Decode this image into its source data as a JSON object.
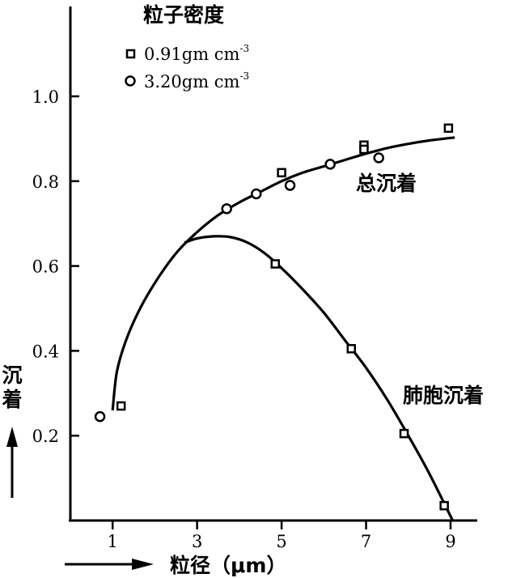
{
  "chart_data": {
    "type": "scatter",
    "legend_title": "粒子密度",
    "xlabel": "粒径（μm）",
    "ylabel": "沉着",
    "xlim": [
      0,
      10
    ],
    "ylim": [
      0,
      1.2
    ],
    "xticks": [
      1,
      3,
      5,
      7,
      9
    ],
    "xtick_labels": [
      "1",
      "3",
      "5",
      "7",
      "9"
    ],
    "yticks": [
      0.2,
      0.4,
      0.6,
      0.8,
      1.0
    ],
    "ytick_labels": [
      "0.2",
      "0.4",
      "0.6",
      "0.8",
      "1.0"
    ],
    "legend_position": "top-left",
    "legend": [
      {
        "marker": "square",
        "label_main": "0.91gm cm",
        "label_sup": "-3"
      },
      {
        "marker": "circle",
        "label_main": "3.20gm cm",
        "label_sup": "-3"
      }
    ],
    "series": [
      {
        "name": "总沉着",
        "points_square": [
          [
            1.2,
            0.27
          ],
          [
            5.0,
            0.82
          ],
          [
            6.95,
            0.885
          ],
          [
            6.95,
            0.875
          ],
          [
            8.95,
            0.925
          ]
        ],
        "points_circle": [
          [
            0.7,
            0.245
          ],
          [
            3.7,
            0.735
          ],
          [
            4.4,
            0.77
          ],
          [
            5.2,
            0.79
          ],
          [
            6.15,
            0.84
          ],
          [
            7.3,
            0.855
          ]
        ],
        "curve": [
          [
            1.0,
            0.26
          ],
          [
            1.1,
            0.35
          ],
          [
            1.3,
            0.42
          ],
          [
            1.6,
            0.49
          ],
          [
            2.0,
            0.56
          ],
          [
            2.5,
            0.63
          ],
          [
            3.0,
            0.68
          ],
          [
            3.5,
            0.72
          ],
          [
            4.0,
            0.75
          ],
          [
            4.5,
            0.775
          ],
          [
            5.0,
            0.8
          ],
          [
            5.5,
            0.82
          ],
          [
            6.0,
            0.835
          ],
          [
            6.5,
            0.85
          ],
          [
            7.0,
            0.865
          ],
          [
            7.5,
            0.878
          ],
          [
            8.0,
            0.888
          ],
          [
            8.5,
            0.896
          ],
          [
            9.1,
            0.903
          ]
        ]
      },
      {
        "name": "肺胞沉着",
        "points_square": [
          [
            4.85,
            0.605
          ],
          [
            6.65,
            0.405
          ],
          [
            7.9,
            0.205
          ],
          [
            8.85,
            0.035
          ]
        ],
        "curve": [
          [
            2.7,
            0.655
          ],
          [
            3.0,
            0.665
          ],
          [
            3.4,
            0.67
          ],
          [
            3.8,
            0.668
          ],
          [
            4.2,
            0.655
          ],
          [
            4.6,
            0.63
          ],
          [
            5.0,
            0.595
          ],
          [
            5.5,
            0.545
          ],
          [
            6.0,
            0.49
          ],
          [
            6.5,
            0.425
          ],
          [
            7.0,
            0.36
          ],
          [
            7.5,
            0.285
          ],
          [
            8.0,
            0.2
          ],
          [
            8.5,
            0.11
          ],
          [
            9.05,
            0.0
          ]
        ]
      }
    ]
  }
}
